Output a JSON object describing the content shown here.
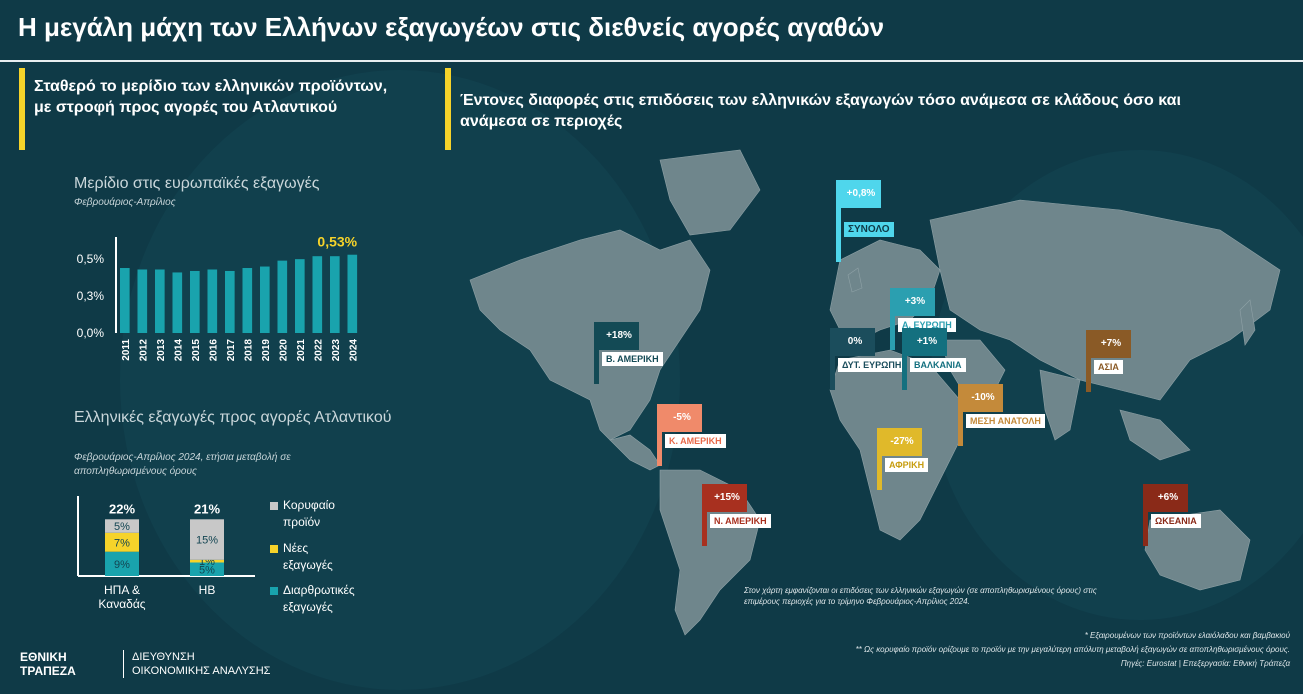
{
  "title": "Η μεγάλη μάχη των Ελλήνων εξαγωγέων στις διεθνείς αγορές αγαθών",
  "left_heading": "Σταθερό το μερίδιο των ελληνικών προϊόντων, με στροφή προς αγορές του Ατλαντικού",
  "right_heading": "Έντονες διαφορές στις επιδόσεις των ελληνικών εξαγωγών τόσο ανάμεσα σε κλάδους όσο και ανάμεσα σε περιοχές",
  "chart1": {
    "title": "Μερίδιο στις ευρωπαϊκές εξαγωγές",
    "subtitle": "Φεβρουάριος-Απρίλιος",
    "highlight": "0,53%"
  },
  "chart2": {
    "title": "Ελληνικές εξαγωγές προς αγορές Ατλαντικού",
    "subtitle": "Φεβρουάριος-Απρίλιος 2024, ετήσια μεταβολή σε αποπληθωρισμένους όρους"
  },
  "chart_data": [
    {
      "type": "bar",
      "title": "Μερίδιο στις ευρωπαϊκές εξαγωγές",
      "subtitle": "Φεβρουάριος-Απρίλιος",
      "categories": [
        "2011",
        "2012",
        "2013",
        "2014",
        "2015",
        "2016",
        "2017",
        "2018",
        "2019",
        "2020",
        "2021",
        "2022",
        "2023",
        "2024"
      ],
      "values": [
        0.44,
        0.43,
        0.43,
        0.41,
        0.42,
        0.43,
        0.42,
        0.44,
        0.45,
        0.49,
        0.5,
        0.52,
        0.52,
        0.53
      ],
      "yticks": [
        "0,0%",
        "0,3%",
        "0,5%"
      ],
      "ytick_values": [
        0.0,
        0.25,
        0.5
      ],
      "ylim": [
        0,
        0.65
      ],
      "annotation": "0,53%",
      "color": "#19a3ad"
    },
    {
      "type": "bar",
      "stacked": true,
      "title": "Ελληνικές εξαγωγές προς αγορές Ατλαντικού",
      "categories": [
        "ΗΠΑ & Καναδάς",
        "ΗΒ"
      ],
      "totals": [
        "22%",
        "21%"
      ],
      "series": [
        {
          "name": "Διαρθρωτικές εξαγωγές",
          "values": [
            9,
            5
          ],
          "labels": [
            "9%",
            "5%"
          ],
          "color": "#19a3ad"
        },
        {
          "name": "Νέες εξαγωγές",
          "values": [
            7,
            1
          ],
          "labels": [
            "7%",
            "1%"
          ],
          "color": "#f6d32a"
        },
        {
          "name": "Κορυφαίο προϊόν",
          "values": [
            5,
            15
          ],
          "labels": [
            "5%",
            "15%"
          ],
          "color": "#c8c8c8"
        }
      ]
    }
  ],
  "map_flags": [
    {
      "id": "total",
      "value": "+0,8%",
      "label": "ΣΥΝΟΛΟ",
      "color": "#4fd6ec",
      "label_color": "#0f3a47"
    },
    {
      "id": "east-europe",
      "value": "+3%",
      "label": "Α. ΕΥΡΩΠΗ",
      "color": "#2b9fb0",
      "label_color": "#2b9fb0"
    },
    {
      "id": "west-europe",
      "value": "0%",
      "label": "ΔΥΤ. ΕΥΡΩΠΗ",
      "color": "#1b4d5c",
      "label_color": "#1b4d5c"
    },
    {
      "id": "balkans",
      "value": "+1%",
      "label": "ΒΑΛΚΑΝΙΑ",
      "color": "#14707f",
      "label_color": "#14707f"
    },
    {
      "id": "north-america",
      "value": "+18%",
      "label": "Β. ΑΜΕΡΙΚΗ",
      "color": "#134a55",
      "label_color": "#134a55"
    },
    {
      "id": "asia",
      "value": "+7%",
      "label": "ΑΣΙΑ",
      "color": "#8a5a26",
      "label_color": "#8a5a26"
    },
    {
      "id": "middle-east",
      "value": "-10%",
      "label": "ΜΕΣΗ ΑΝΑΤΟΛΗ",
      "color": "#c48a3a",
      "label_color": "#c48a3a"
    },
    {
      "id": "central-america",
      "value": "-5%",
      "label": "Κ. ΑΜΕΡΙΚΗ",
      "color": "#f08a6a",
      "label_color": "#e8694a"
    },
    {
      "id": "africa",
      "value": "-27%",
      "label": "ΑΦΡΙΚΗ",
      "color": "#e0b92a",
      "label_color": "#c79d10"
    },
    {
      "id": "south-america",
      "value": "+15%",
      "label": "Ν. ΑΜΕΡΙΚΗ",
      "color": "#a8301f",
      "label_color": "#a8301f"
    },
    {
      "id": "oceania",
      "value": "+6%",
      "label": "ΩΚΕΑΝΙΑ",
      "color": "#8a2a18",
      "label_color": "#8a2a18"
    }
  ],
  "map_note": "Στον χάρτη εμφανίζονται οι επιδόσεις των ελληνικών εξαγωγών (σε αποπληθωρισμένους όρους) στις επιμέρους περιοχές για το τρίμηνο Φεβρουάριος-Απρίλιος 2024.",
  "footnotes": {
    "f1": "* Εξαιρουμένων των προϊόντων ελαιόλαδου και βαμβακιού",
    "f2": "** Ως κορυφαίο προϊόν ορίζουμε το προϊόν με την μεγαλύτερη απόλυτη μεταβολή εξαγωγών σε αποπληθωρισμένους όρους.",
    "source": "Πηγές: Eurostat | Επεξεργασία: Εθνική Τράπεζα"
  },
  "logo": {
    "line1": "ΕΘΝΙΚΗ",
    "line2": "ΤΡΑΠΕΖΑ"
  },
  "department": {
    "line1": "ΔΙΕΥΘΥΝΣΗ",
    "line2": "ΟΙΚΟΝΟΜΙΚΗΣ ΑΝΑΛΥΣΗΣ"
  },
  "colors": {
    "background": "#0f3a47",
    "accent": "#f6d32a",
    "teal": "#19a3ad",
    "map": "#6f868c"
  }
}
